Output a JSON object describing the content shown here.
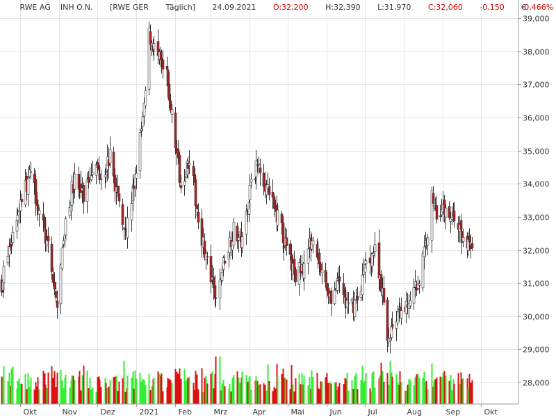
{
  "header": {
    "name": "RWE AG    INH O.N.",
    "exchange": "[RWE GER",
    "interval": "Täglich]",
    "date": "24.09.2021",
    "open": "O:32,200",
    "high": "H:32,390",
    "low": "L:31,970",
    "close": "C:32,060",
    "change": "-0,150",
    "change_pct": "-0,466%"
  },
  "colors": {
    "header_text": "#333333",
    "negative": "#cc0000",
    "candle_up": "#ffffff",
    "candle_down": "#b22222",
    "candle_outline": "#333333",
    "volume_up": "#33ee33",
    "volume_down": "#dd1111",
    "grid": "#e4e4e4",
    "axis": "#999999"
  },
  "chart_data": {
    "type": "candlestick",
    "currency_label": "€",
    "y_ticks": [
      "39,000",
      "38,000",
      "37,000",
      "36,000",
      "35,000",
      "34,000",
      "33,000",
      "32,000",
      "31,000",
      "30,000",
      "29,000",
      "28,000"
    ],
    "y_tick_values": [
      39,
      38,
      37,
      36,
      35,
      34,
      33,
      32,
      31,
      30,
      29,
      28
    ],
    "ylim": [
      27.35,
      39.55
    ],
    "x_ticks": [
      "Okt",
      "Nov",
      "Dez",
      "2021",
      "Feb",
      "Mrz",
      "Apr",
      "Mai",
      "Jun",
      "Jul",
      "Aug",
      "Sep",
      "Okt"
    ],
    "x_tick_dates": [
      "2020-10-01",
      "2020-11-01",
      "2020-12-01",
      "2021-01-01",
      "2021-02-01",
      "2021-03-01",
      "2021-04-01",
      "2021-05-01",
      "2021-06-01",
      "2021-07-01",
      "2021-08-01",
      "2021-09-01",
      "2021-10-01"
    ],
    "xlim": [
      "2020-09-15",
      "2021-10-31"
    ],
    "grid": true,
    "close_path": [
      [
        "2020-09-16",
        31.0
      ],
      [
        "2020-09-25",
        32.5
      ],
      [
        "2020-10-01",
        33.5
      ],
      [
        "2020-10-09",
        34.3
      ],
      [
        "2020-10-16",
        33.2
      ],
      [
        "2020-10-23",
        32.0
      ],
      [
        "2020-10-30",
        30.3
      ],
      [
        "2020-11-06",
        33.0
      ],
      [
        "2020-11-13",
        34.1
      ],
      [
        "2020-11-20",
        33.6
      ],
      [
        "2020-11-27",
        34.6
      ],
      [
        "2020-12-04",
        34.3
      ],
      [
        "2020-12-11",
        34.8
      ],
      [
        "2020-12-18",
        33.4
      ],
      [
        "2020-12-24",
        32.6
      ],
      [
        "2020-12-31",
        34.2
      ],
      [
        "2021-01-07",
        36.2
      ],
      [
        "2021-01-11",
        38.5
      ],
      [
        "2021-01-18",
        37.8
      ],
      [
        "2021-01-25",
        37.2
      ],
      [
        "2021-02-01",
        35.2
      ],
      [
        "2021-02-05",
        34.0
      ],
      [
        "2021-02-12",
        34.8
      ],
      [
        "2021-02-19",
        33.0
      ],
      [
        "2021-02-26",
        31.6
      ],
      [
        "2021-03-05",
        30.4
      ],
      [
        "2021-03-12",
        31.8
      ],
      [
        "2021-03-19",
        32.6
      ],
      [
        "2021-03-26",
        32.2
      ],
      [
        "2021-04-02",
        34.2
      ],
      [
        "2021-04-09",
        34.6
      ],
      [
        "2021-04-16",
        33.6
      ],
      [
        "2021-04-23",
        33.0
      ],
      [
        "2021-04-30",
        32.0
      ],
      [
        "2021-05-07",
        31.2
      ],
      [
        "2021-05-14",
        31.6
      ],
      [
        "2021-05-21",
        32.5
      ],
      [
        "2021-05-28",
        31.2
      ],
      [
        "2021-06-04",
        30.6
      ],
      [
        "2021-06-11",
        31.0
      ],
      [
        "2021-06-18",
        30.2
      ],
      [
        "2021-06-25",
        30.5
      ],
      [
        "2021-07-02",
        31.6
      ],
      [
        "2021-07-09",
        32.0
      ],
      [
        "2021-07-14",
        31.0
      ],
      [
        "2021-07-19",
        29.2
      ],
      [
        "2021-07-23",
        29.8
      ],
      [
        "2021-07-30",
        30.0
      ],
      [
        "2021-08-06",
        30.6
      ],
      [
        "2021-08-13",
        31.1
      ],
      [
        "2021-08-20",
        32.6
      ],
      [
        "2021-08-23",
        33.6
      ],
      [
        "2021-08-27",
        33.2
      ],
      [
        "2021-09-03",
        33.2
      ],
      [
        "2021-09-10",
        33.0
      ],
      [
        "2021-09-17",
        32.3
      ],
      [
        "2021-09-24",
        32.06
      ]
    ],
    "volume": {
      "scale": "relative",
      "last_bar_ratio": 0.5
    }
  }
}
